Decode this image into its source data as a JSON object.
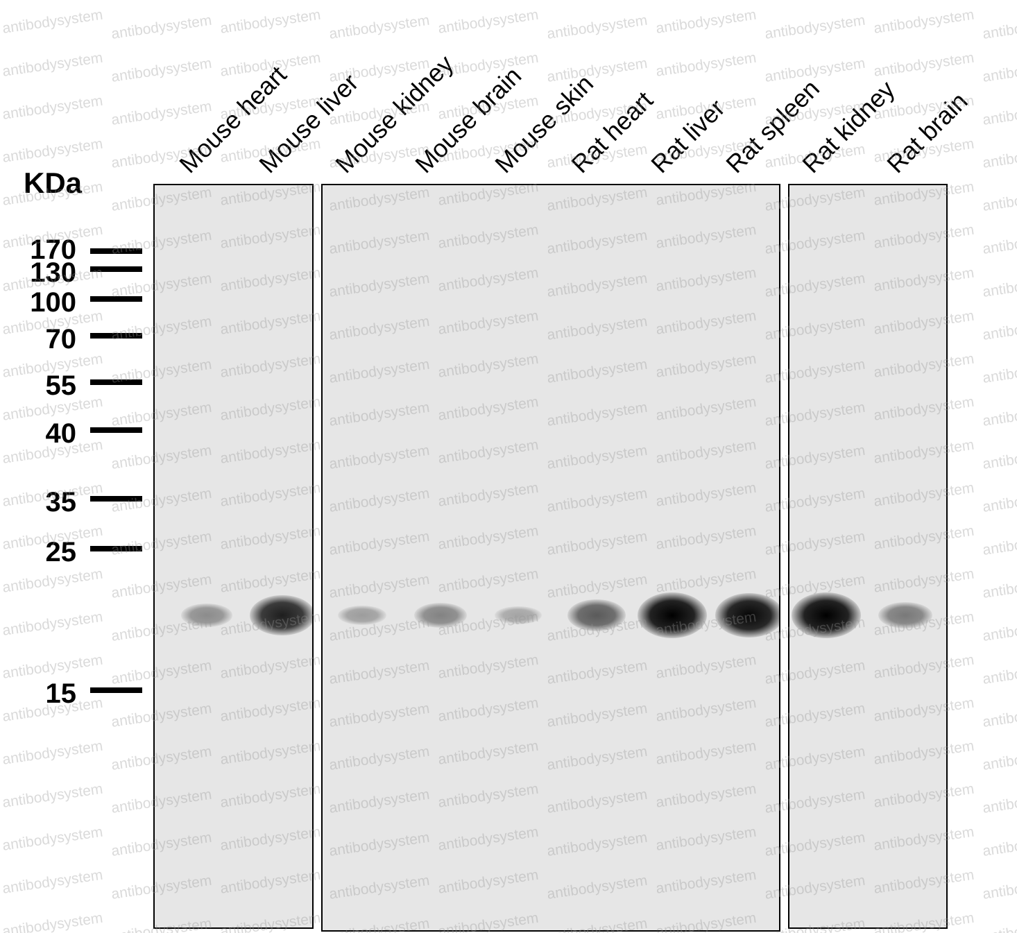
{
  "unit_label": "KDa",
  "markers": [
    {
      "label": "170",
      "kda": 170
    },
    {
      "label": "130",
      "kda": 130
    },
    {
      "label": "100",
      "kda": 100
    },
    {
      "label": "70",
      "kda": 70
    },
    {
      "label": "55",
      "kda": 55
    },
    {
      "label": "40",
      "kda": 40
    },
    {
      "label": "35",
      "kda": 35
    },
    {
      "label": "25",
      "kda": 25
    },
    {
      "label": "15",
      "kda": 15
    }
  ],
  "lanes": [
    {
      "label": "Mouse heart",
      "panel": 0,
      "band_intensity": 0.35
    },
    {
      "label": "Mouse liver",
      "panel": 0,
      "band_intensity": 0.85
    },
    {
      "label": "Mouse kidney",
      "panel": 1,
      "band_intensity": 0.25
    },
    {
      "label": "Mouse brain",
      "panel": 1,
      "band_intensity": 0.4
    },
    {
      "label": "Mouse skin",
      "panel": 1,
      "band_intensity": 0.2
    },
    {
      "label": "Rat heart",
      "panel": 1,
      "band_intensity": 0.6
    },
    {
      "label": "Rat liver",
      "panel": 1,
      "band_intensity": 1.0
    },
    {
      "label": "Rat spleen",
      "panel": 1,
      "band_intensity": 0.95
    },
    {
      "label": "Rat kidney",
      "panel": 2,
      "band_intensity": 1.0
    },
    {
      "label": "Rat brain",
      "panel": 2,
      "band_intensity": 0.45
    }
  ],
  "watermark": "antibodysystem"
}
